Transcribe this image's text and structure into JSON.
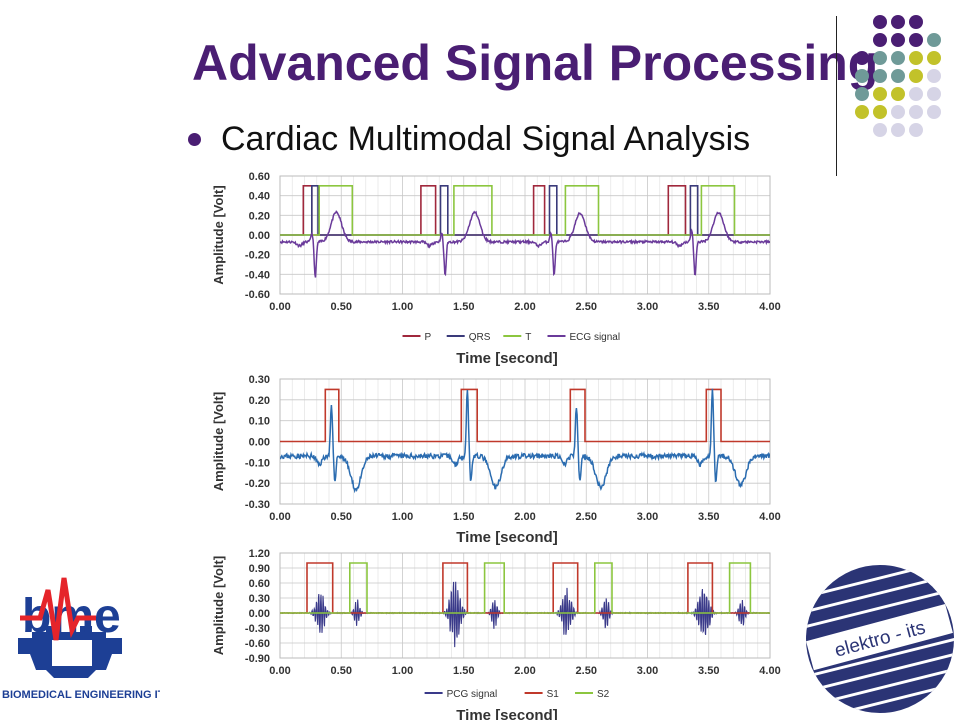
{
  "slide": {
    "title": "Advanced Signal Processing",
    "bullet": "Cardiac Multimodal Signal Analysis"
  },
  "logos": {
    "bme_mark": "bme",
    "bme_caption": "BIOMEDICAL ENGINEERING ITS",
    "elektro_text": "elektro - its"
  },
  "colors": {
    "title": "#4a1e73",
    "dot_purple": "#4a1e73",
    "dot_teal": "#6f9a98",
    "dot_olive": "#c2c22a",
    "dot_lavender": "#d6d4e6",
    "bme_red": "#e5242a",
    "bme_blue": "#1d3f95",
    "its_navy": "#2b3475"
  },
  "chart_data": [
    {
      "type": "line",
      "title": "",
      "xlabel": "Time [second]",
      "ylabel": "Amplitude [Volt]",
      "xlim": [
        0,
        4
      ],
      "ylim": [
        -0.6,
        0.6
      ],
      "x_ticks": [
        "0.00",
        "0.50",
        "1.00",
        "1.50",
        "2.00",
        "2.50",
        "3.00",
        "3.50",
        "4.00"
      ],
      "y_ticks": [
        "0.60",
        "0.40",
        "0.20",
        "0.00",
        "-0.20",
        "-0.40",
        "-0.60"
      ],
      "grid": true,
      "legend_position": "bottom",
      "series": [
        {
          "name": "P",
          "color": "#a0283c",
          "kind": "gate",
          "gates": [
            [
              0.19,
              0.26
            ],
            [
              1.15,
              1.27
            ],
            [
              2.07,
              2.16
            ],
            [
              3.17,
              3.31
            ]
          ],
          "on_value": 0.5
        },
        {
          "name": "QRS",
          "color": "#3a3a7a",
          "kind": "gate",
          "gates": [
            [
              0.26,
              0.31
            ],
            [
              1.31,
              1.37
            ],
            [
              2.2,
              2.26
            ],
            [
              3.35,
              3.41
            ]
          ],
          "on_value": 0.5
        },
        {
          "name": "T",
          "color": "#8cc63f",
          "kind": "gate",
          "gates": [
            [
              0.32,
              0.59
            ],
            [
              1.42,
              1.73
            ],
            [
              2.33,
              2.6
            ],
            [
              3.44,
              3.71
            ]
          ],
          "on_value": 0.5
        },
        {
          "name": "ECG signal",
          "color": "#6a3a9a",
          "kind": "signal",
          "baseline": -0.07,
          "noise": 0.012,
          "beats": [
            {
              "t": 0.28,
              "r": 0.05,
              "s": -0.36,
              "tpeak": 0.46,
              "tamp": 0.3
            },
            {
              "t": 1.34,
              "r": 0.05,
              "s": -0.34,
              "tpeak": 1.59,
              "tamp": 0.3
            },
            {
              "t": 2.23,
              "r": 0.05,
              "s": -0.34,
              "tpeak": 2.45,
              "tamp": 0.29
            },
            {
              "t": 3.38,
              "r": 0.07,
              "s": -0.35,
              "tpeak": 3.58,
              "tamp": 0.3
            }
          ]
        }
      ]
    },
    {
      "type": "line",
      "title": "",
      "xlabel": "Time [second]",
      "ylabel": "Amplitude [Volt]",
      "xlim": [
        0,
        4
      ],
      "ylim": [
        -0.3,
        0.3
      ],
      "x_ticks": [
        "0.00",
        "0.50",
        "1.00",
        "1.50",
        "2.00",
        "2.50",
        "3.00",
        "3.50",
        "4.00"
      ],
      "y_ticks": [
        "0.30",
        "0.20",
        "0.10",
        "0.00",
        "-0.10",
        "-0.20",
        "-0.30"
      ],
      "grid": true,
      "series": [
        {
          "name": "",
          "color": "#c0392b",
          "kind": "gate",
          "gates": [
            [
              0.37,
              0.48
            ],
            [
              1.48,
              1.61
            ],
            [
              2.37,
              2.49
            ],
            [
              3.48,
              3.6
            ]
          ],
          "on_value": 0.25,
          "off_value": 0.0
        },
        {
          "name": "",
          "color": "#2b6cb0",
          "kind": "signal",
          "baseline": -0.07,
          "noise": 0.012,
          "beats": [
            {
              "t": 0.44,
              "r": 0.13,
              "s": -0.12,
              "tpeak": 0.62,
              "tamp": -0.16
            },
            {
              "t": 1.55,
              "r": 0.18,
              "s": -0.12,
              "tpeak": 1.76,
              "tamp": -0.15
            },
            {
              "t": 2.44,
              "r": 0.13,
              "s": -0.12,
              "tpeak": 2.62,
              "tamp": -0.15
            },
            {
              "t": 3.55,
              "r": 0.18,
              "s": -0.12,
              "tpeak": 3.76,
              "tamp": -0.14
            }
          ]
        }
      ]
    },
    {
      "type": "line",
      "title": "",
      "xlabel": "Time [second]",
      "ylabel": "Amplitude [Volt]",
      "xlim": [
        0,
        4
      ],
      "ylim": [
        -0.9,
        1.2
      ],
      "x_ticks": [
        "0.00",
        "0.50",
        "1.00",
        "1.50",
        "2.00",
        "2.50",
        "3.00",
        "3.50",
        "4.00"
      ],
      "y_ticks": [
        "1.20",
        "0.90",
        "0.60",
        "0.30",
        "0.00",
        "-0.30",
        "-0.60",
        "-0.90"
      ],
      "grid": true,
      "legend_position": "bottom",
      "series": [
        {
          "name": "PCG signal",
          "color": "#3a3a8a",
          "kind": "bursts",
          "bursts": [
            {
              "t": 0.33,
              "amp": 0.45,
              "dur": 0.09
            },
            {
              "t": 0.63,
              "amp": 0.25,
              "dur": 0.06
            },
            {
              "t": 1.43,
              "amp": 0.7,
              "dur": 0.1
            },
            {
              "t": 1.75,
              "amp": 0.3,
              "dur": 0.06
            },
            {
              "t": 2.34,
              "amp": 0.55,
              "dur": 0.09
            },
            {
              "t": 2.66,
              "amp": 0.35,
              "dur": 0.06
            },
            {
              "t": 3.46,
              "amp": 0.65,
              "dur": 0.1
            },
            {
              "t": 3.77,
              "amp": 0.3,
              "dur": 0.06
            }
          ]
        },
        {
          "name": "S1",
          "color": "#c0392b",
          "kind": "gate",
          "gates": [
            [
              0.22,
              0.43
            ],
            [
              1.33,
              1.53
            ],
            [
              2.23,
              2.43
            ],
            [
              3.33,
              3.53
            ]
          ],
          "on_value": 1.0
        },
        {
          "name": "S2",
          "color": "#8cc63f",
          "kind": "gate",
          "gates": [
            [
              0.57,
              0.71
            ],
            [
              1.67,
              1.83
            ],
            [
              2.57,
              2.71
            ],
            [
              3.67,
              3.84
            ]
          ],
          "on_value": 1.0
        }
      ]
    }
  ]
}
